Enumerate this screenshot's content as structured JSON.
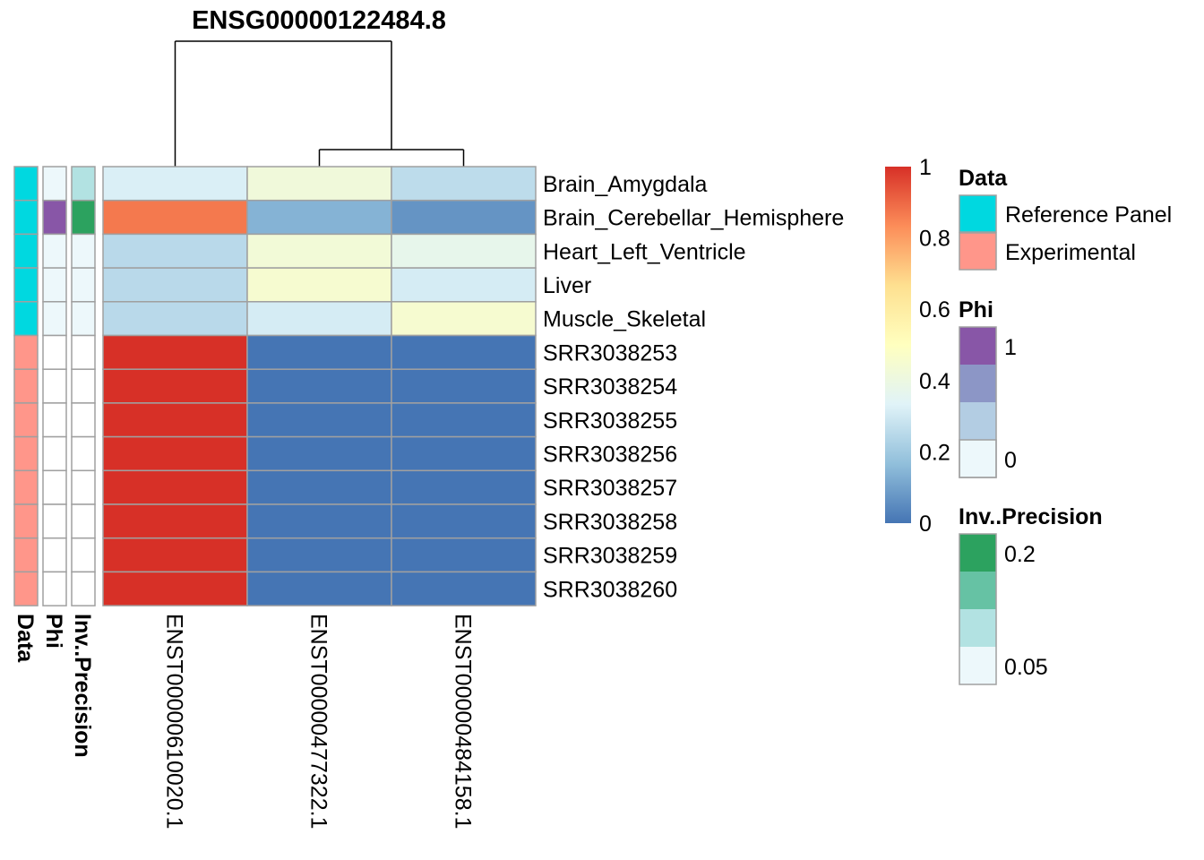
{
  "chart_data": {
    "type": "heatmap",
    "title": "ENSG00000122484.8",
    "columns": [
      "ENST00000610020.1",
      "ENST00000477322.1",
      "ENST00000484158.1"
    ],
    "rows": [
      "Brain_Amygdala",
      "Brain_Cerebellar_Hemisphere",
      "Heart_Left_Ventricle",
      "Liver",
      "Muscle_Skeletal",
      "SRR3038253",
      "SRR3038254",
      "SRR3038255",
      "SRR3038256",
      "SRR3038257",
      "SRR3038258",
      "SRR3038259",
      "SRR3038260"
    ],
    "values": [
      [
        0.32,
        0.42,
        0.26
      ],
      [
        0.87,
        0.14,
        0.07
      ],
      [
        0.25,
        0.43,
        0.37
      ],
      [
        0.25,
        0.45,
        0.31
      ],
      [
        0.25,
        0.31,
        0.45
      ],
      [
        1.0,
        0.0,
        0.0
      ],
      [
        1.0,
        0.0,
        0.0
      ],
      [
        1.0,
        0.0,
        0.0
      ],
      [
        1.0,
        0.0,
        0.0
      ],
      [
        1.0,
        0.0,
        0.0
      ],
      [
        1.0,
        0.0,
        0.0
      ],
      [
        1.0,
        0.0,
        0.0
      ],
      [
        1.0,
        0.0,
        0.0
      ]
    ],
    "color_scale": {
      "colors": [
        "#4575b4",
        "#91bfdb",
        "#e0f3f8",
        "#ffffbf",
        "#fee090",
        "#fc8d59",
        "#d73027"
      ],
      "ticks": [
        0,
        0.2,
        0.4,
        0.6,
        0.8,
        1
      ],
      "range": [
        0,
        1
      ]
    },
    "column_dendrogram": {
      "merges": [
        [
          2,
          3
        ],
        [
          1,
          "2+3"
        ]
      ]
    },
    "row_annotations": [
      {
        "name": "Data",
        "values": [
          "Reference Panel",
          "Reference Panel",
          "Reference Panel",
          "Reference Panel",
          "Reference Panel",
          "Experimental",
          "Experimental",
          "Experimental",
          "Experimental",
          "Experimental",
          "Experimental",
          "Experimental",
          "Experimental"
        ]
      },
      {
        "name": "Phi",
        "values": [
          0.05,
          1,
          0.05,
          0.05,
          0.05,
          0,
          0,
          0,
          0,
          0,
          0,
          0,
          0
        ]
      },
      {
        "name": "Inv..Precision",
        "values": [
          0.07,
          0.2,
          0.055,
          0.055,
          0.055,
          0.05,
          0.05,
          0.05,
          0.05,
          0.05,
          0.05,
          0.05,
          0.05
        ]
      }
    ],
    "legends": {
      "color_bar": {
        "ticks": [
          "1",
          "0.8",
          "0.6",
          "0.4",
          "0.2",
          "0"
        ]
      },
      "data": {
        "title": "Data",
        "items": [
          {
            "label": "Reference Panel",
            "color": "#00D8E0"
          },
          {
            "label": "Experimental",
            "color": "#FF968A"
          }
        ]
      },
      "phi": {
        "title": "Phi",
        "swatches": [
          "#8856A7",
          "#8C96C6",
          "#B3CDE3",
          "#EDF8FB"
        ],
        "labels": [
          "1",
          "0"
        ]
      },
      "inv_precision": {
        "title": "Inv..Precision",
        "swatches": [
          "#2CA25F",
          "#66C2A4",
          "#B2E2E2",
          "#EDF8FB"
        ],
        "labels": [
          "0.2",
          "0.05"
        ]
      }
    }
  }
}
